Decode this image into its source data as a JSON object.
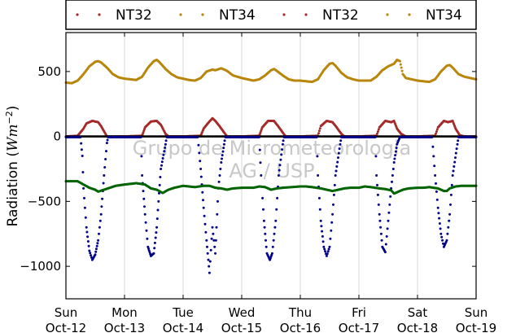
{
  "chart_data": {
    "type": "scatter",
    "title": "",
    "ylabel": "Radiation (Wm⁻²)",
    "ylabel_main": "Radiation (",
    "ylabel_unit": "Wm",
    "ylabel_exp": "−2",
    "ylabel_close": ")",
    "xlim": [
      0,
      7
    ],
    "ylim": [
      -1250,
      800
    ],
    "grid": "vertical",
    "legend_position": "top",
    "watermark": [
      "Grupo de Micrometeorologia",
      "AG / USP"
    ],
    "x_ticks": [
      {
        "x": 0,
        "day": "Sun",
        "date": "Oct-12"
      },
      {
        "x": 1,
        "day": "Mon",
        "date": "Oct-13"
      },
      {
        "x": 2,
        "day": "Tue",
        "date": "Oct-14"
      },
      {
        "x": 3,
        "day": "Wed",
        "date": "Oct-15"
      },
      {
        "x": 4,
        "day": "Thu",
        "date": "Oct-16"
      },
      {
        "x": 5,
        "day": "Fri",
        "date": "Oct-17"
      },
      {
        "x": 6,
        "day": "Sat",
        "date": "Oct-18"
      },
      {
        "x": 7,
        "day": "Sun",
        "date": "Oct-19"
      }
    ],
    "y_ticks": [
      {
        "v": 500,
        "label": "500"
      },
      {
        "v": 0,
        "label": "0"
      },
      {
        "v": -500,
        "label": "−500"
      },
      {
        "v": -1000,
        "label": "−1000"
      }
    ],
    "legend": [
      {
        "label": "NT32",
        "color": "#a52a2a"
      },
      {
        "label": "NT34",
        "color": "#b8860b"
      },
      {
        "label": "NT32",
        "color": "#a52a2a"
      },
      {
        "label": "NT34",
        "color": "#b8860b"
      }
    ],
    "series": [
      {
        "color": "#b8860b",
        "description": "longwave incoming (upper band)",
        "points": [
          [
            0.0,
            415
          ],
          [
            0.1,
            410
          ],
          [
            0.2,
            430
          ],
          [
            0.3,
            480
          ],
          [
            0.4,
            540
          ],
          [
            0.5,
            575
          ],
          [
            0.55,
            580
          ],
          [
            0.6,
            570
          ],
          [
            0.7,
            530
          ],
          [
            0.8,
            480
          ],
          [
            0.9,
            455
          ],
          [
            1.0,
            445
          ],
          [
            1.1,
            440
          ],
          [
            1.2,
            435
          ],
          [
            1.3,
            460
          ],
          [
            1.4,
            530
          ],
          [
            1.5,
            580
          ],
          [
            1.55,
            590
          ],
          [
            1.6,
            570
          ],
          [
            1.7,
            520
          ],
          [
            1.8,
            480
          ],
          [
            1.9,
            455
          ],
          [
            2.0,
            445
          ],
          [
            2.1,
            435
          ],
          [
            2.2,
            430
          ],
          [
            2.3,
            450
          ],
          [
            2.4,
            500
          ],
          [
            2.5,
            515
          ],
          [
            2.55,
            510
          ],
          [
            2.65,
            525
          ],
          [
            2.75,
            505
          ],
          [
            2.85,
            470
          ],
          [
            3.0,
            450
          ],
          [
            3.1,
            440
          ],
          [
            3.2,
            430
          ],
          [
            3.3,
            440
          ],
          [
            3.4,
            470
          ],
          [
            3.5,
            510
          ],
          [
            3.55,
            520
          ],
          [
            3.6,
            505
          ],
          [
            3.7,
            470
          ],
          [
            3.8,
            440
          ],
          [
            3.9,
            430
          ],
          [
            4.0,
            430
          ],
          [
            4.1,
            425
          ],
          [
            4.2,
            420
          ],
          [
            4.3,
            440
          ],
          [
            4.4,
            510
          ],
          [
            4.5,
            560
          ],
          [
            4.55,
            565
          ],
          [
            4.6,
            545
          ],
          [
            4.7,
            490
          ],
          [
            4.8,
            455
          ],
          [
            4.9,
            440
          ],
          [
            5.0,
            430
          ],
          [
            5.1,
            430
          ],
          [
            5.2,
            430
          ],
          [
            5.3,
            460
          ],
          [
            5.4,
            510
          ],
          [
            5.5,
            540
          ],
          [
            5.6,
            560
          ],
          [
            5.65,
            590
          ],
          [
            5.7,
            580
          ],
          [
            5.75,
            480
          ],
          [
            5.8,
            450
          ],
          [
            5.9,
            440
          ],
          [
            6.0,
            430
          ],
          [
            6.1,
            425
          ],
          [
            6.2,
            420
          ],
          [
            6.3,
            440
          ],
          [
            6.4,
            500
          ],
          [
            6.5,
            545
          ],
          [
            6.55,
            550
          ],
          [
            6.6,
            530
          ],
          [
            6.7,
            480
          ],
          [
            6.8,
            460
          ],
          [
            6.9,
            450
          ],
          [
            7.0,
            440
          ]
        ]
      },
      {
        "color": "#a52a2a",
        "description": "net radiation (middle band)",
        "points": [
          [
            0.0,
            0
          ],
          [
            0.2,
            5
          ],
          [
            0.3,
            60
          ],
          [
            0.35,
            100
          ],
          [
            0.45,
            120
          ],
          [
            0.55,
            110
          ],
          [
            0.6,
            80
          ],
          [
            0.65,
            40
          ],
          [
            0.7,
            0
          ],
          [
            1.0,
            0
          ],
          [
            1.3,
            5
          ],
          [
            1.35,
            70
          ],
          [
            1.45,
            115
          ],
          [
            1.55,
            120
          ],
          [
            1.62,
            90
          ],
          [
            1.7,
            20
          ],
          [
            1.75,
            0
          ],
          [
            2.0,
            0
          ],
          [
            2.3,
            5
          ],
          [
            2.35,
            60
          ],
          [
            2.42,
            100
          ],
          [
            2.5,
            140
          ],
          [
            2.55,
            120
          ],
          [
            2.62,
            80
          ],
          [
            2.7,
            30
          ],
          [
            2.75,
            0
          ],
          [
            3.0,
            0
          ],
          [
            3.3,
            5
          ],
          [
            3.35,
            70
          ],
          [
            3.45,
            120
          ],
          [
            3.55,
            120
          ],
          [
            3.62,
            80
          ],
          [
            3.7,
            30
          ],
          [
            3.75,
            0
          ],
          [
            4.0,
            0
          ],
          [
            4.3,
            5
          ],
          [
            4.35,
            80
          ],
          [
            4.45,
            120
          ],
          [
            4.55,
            110
          ],
          [
            4.62,
            70
          ],
          [
            4.7,
            20
          ],
          [
            4.75,
            0
          ],
          [
            5.0,
            0
          ],
          [
            5.3,
            5
          ],
          [
            5.35,
            70
          ],
          [
            5.45,
            120
          ],
          [
            5.55,
            110
          ],
          [
            5.6,
            120
          ],
          [
            5.65,
            60
          ],
          [
            5.72,
            20
          ],
          [
            5.8,
            0
          ],
          [
            6.0,
            0
          ],
          [
            6.3,
            5
          ],
          [
            6.35,
            70
          ],
          [
            6.45,
            120
          ],
          [
            6.52,
            110
          ],
          [
            6.6,
            120
          ],
          [
            6.65,
            60
          ],
          [
            6.72,
            10
          ],
          [
            6.8,
            0
          ],
          [
            7.0,
            0
          ]
        ]
      },
      {
        "color": "#000000",
        "description": "zero reference line",
        "points": [
          [
            0.0,
            0
          ],
          [
            1.0,
            0
          ],
          [
            2.0,
            0
          ],
          [
            3.0,
            0
          ],
          [
            4.0,
            0
          ],
          [
            5.0,
            0
          ],
          [
            6.0,
            0
          ],
          [
            7.0,
            0
          ]
        ]
      },
      {
        "color": "#00008b",
        "description": "outgoing shortwave (negative dips)",
        "points": [
          [
            0.0,
            -5
          ],
          [
            0.25,
            -5
          ],
          [
            0.28,
            -150
          ],
          [
            0.3,
            -400
          ],
          [
            0.35,
            -700
          ],
          [
            0.4,
            -880
          ],
          [
            0.45,
            -950
          ],
          [
            0.5,
            -910
          ],
          [
            0.55,
            -800
          ],
          [
            0.6,
            -600
          ],
          [
            0.65,
            -300
          ],
          [
            0.7,
            -50
          ],
          [
            0.72,
            -5
          ],
          [
            1.0,
            -5
          ],
          [
            1.28,
            -5
          ],
          [
            1.3,
            -300
          ],
          [
            1.35,
            -600
          ],
          [
            1.4,
            -850
          ],
          [
            1.45,
            -920
          ],
          [
            1.5,
            -900
          ],
          [
            1.55,
            -700
          ],
          [
            1.58,
            -500
          ],
          [
            1.62,
            -250
          ],
          [
            1.7,
            -60
          ],
          [
            1.72,
            -5
          ],
          [
            2.0,
            -5
          ],
          [
            2.25,
            -5
          ],
          [
            2.3,
            -250
          ],
          [
            2.35,
            -550
          ],
          [
            2.4,
            -800
          ],
          [
            2.45,
            -1050
          ],
          [
            2.5,
            -700
          ],
          [
            2.55,
            -900
          ],
          [
            2.6,
            -400
          ],
          [
            2.65,
            -200
          ],
          [
            2.7,
            -60
          ],
          [
            2.72,
            -5
          ],
          [
            3.0,
            -5
          ],
          [
            3.3,
            -5
          ],
          [
            3.33,
            -300
          ],
          [
            3.38,
            -650
          ],
          [
            3.43,
            -900
          ],
          [
            3.48,
            -950
          ],
          [
            3.52,
            -900
          ],
          [
            3.58,
            -650
          ],
          [
            3.63,
            -300
          ],
          [
            3.7,
            -60
          ],
          [
            3.72,
            -5
          ],
          [
            4.0,
            -5
          ],
          [
            4.28,
            -5
          ],
          [
            4.3,
            -300
          ],
          [
            4.35,
            -650
          ],
          [
            4.4,
            -850
          ],
          [
            4.45,
            -920
          ],
          [
            4.5,
            -850
          ],
          [
            4.55,
            -600
          ],
          [
            4.6,
            -300
          ],
          [
            4.68,
            -60
          ],
          [
            4.7,
            -5
          ],
          [
            5.0,
            -5
          ],
          [
            5.28,
            -5
          ],
          [
            5.3,
            -300
          ],
          [
            5.35,
            -600
          ],
          [
            5.4,
            -850
          ],
          [
            5.45,
            -890
          ],
          [
            5.5,
            -650
          ],
          [
            5.55,
            -400
          ],
          [
            5.6,
            -200
          ],
          [
            5.65,
            -60
          ],
          [
            5.7,
            -5
          ],
          [
            6.0,
            -5
          ],
          [
            6.25,
            -5
          ],
          [
            6.3,
            -300
          ],
          [
            6.35,
            -550
          ],
          [
            6.4,
            -750
          ],
          [
            6.45,
            -850
          ],
          [
            6.5,
            -800
          ],
          [
            6.55,
            -600
          ],
          [
            6.6,
            -300
          ],
          [
            6.68,
            -60
          ],
          [
            6.7,
            -5
          ],
          [
            7.0,
            -5
          ]
        ]
      },
      {
        "color": "#006400",
        "description": "longwave outgoing (lower band)",
        "points": [
          [
            0.0,
            -345
          ],
          [
            0.2,
            -345
          ],
          [
            0.3,
            -370
          ],
          [
            0.4,
            -395
          ],
          [
            0.5,
            -410
          ],
          [
            0.55,
            -425
          ],
          [
            0.65,
            -410
          ],
          [
            0.75,
            -395
          ],
          [
            0.85,
            -380
          ],
          [
            1.0,
            -370
          ],
          [
            1.2,
            -360
          ],
          [
            1.35,
            -370
          ],
          [
            1.45,
            -400
          ],
          [
            1.55,
            -410
          ],
          [
            1.65,
            -435
          ],
          [
            1.75,
            -410
          ],
          [
            1.85,
            -395
          ],
          [
            2.0,
            -380
          ],
          [
            2.1,
            -385
          ],
          [
            2.2,
            -390
          ],
          [
            2.35,
            -380
          ],
          [
            2.45,
            -380
          ],
          [
            2.55,
            -395
          ],
          [
            2.65,
            -400
          ],
          [
            2.75,
            -410
          ],
          [
            2.85,
            -400
          ],
          [
            3.0,
            -395
          ],
          [
            3.1,
            -395
          ],
          [
            3.2,
            -395
          ],
          [
            3.3,
            -385
          ],
          [
            3.4,
            -390
          ],
          [
            3.5,
            -410
          ],
          [
            3.6,
            -400
          ],
          [
            3.7,
            -395
          ],
          [
            3.85,
            -390
          ],
          [
            4.0,
            -385
          ],
          [
            4.1,
            -385
          ],
          [
            4.2,
            -390
          ],
          [
            4.35,
            -400
          ],
          [
            4.45,
            -410
          ],
          [
            4.55,
            -420
          ],
          [
            4.65,
            -410
          ],
          [
            4.75,
            -400
          ],
          [
            4.85,
            -395
          ],
          [
            5.0,
            -395
          ],
          [
            5.1,
            -385
          ],
          [
            5.2,
            -390
          ],
          [
            5.35,
            -400
          ],
          [
            5.45,
            -405
          ],
          [
            5.55,
            -415
          ],
          [
            5.6,
            -440
          ],
          [
            5.65,
            -430
          ],
          [
            5.75,
            -410
          ],
          [
            5.85,
            -400
          ],
          [
            6.0,
            -395
          ],
          [
            6.1,
            -395
          ],
          [
            6.2,
            -390
          ],
          [
            6.35,
            -400
          ],
          [
            6.45,
            -420
          ],
          [
            6.5,
            -420
          ],
          [
            6.55,
            -400
          ],
          [
            6.65,
            -385
          ],
          [
            6.75,
            -380
          ],
          [
            6.9,
            -380
          ],
          [
            7.0,
            -380
          ]
        ]
      }
    ]
  }
}
